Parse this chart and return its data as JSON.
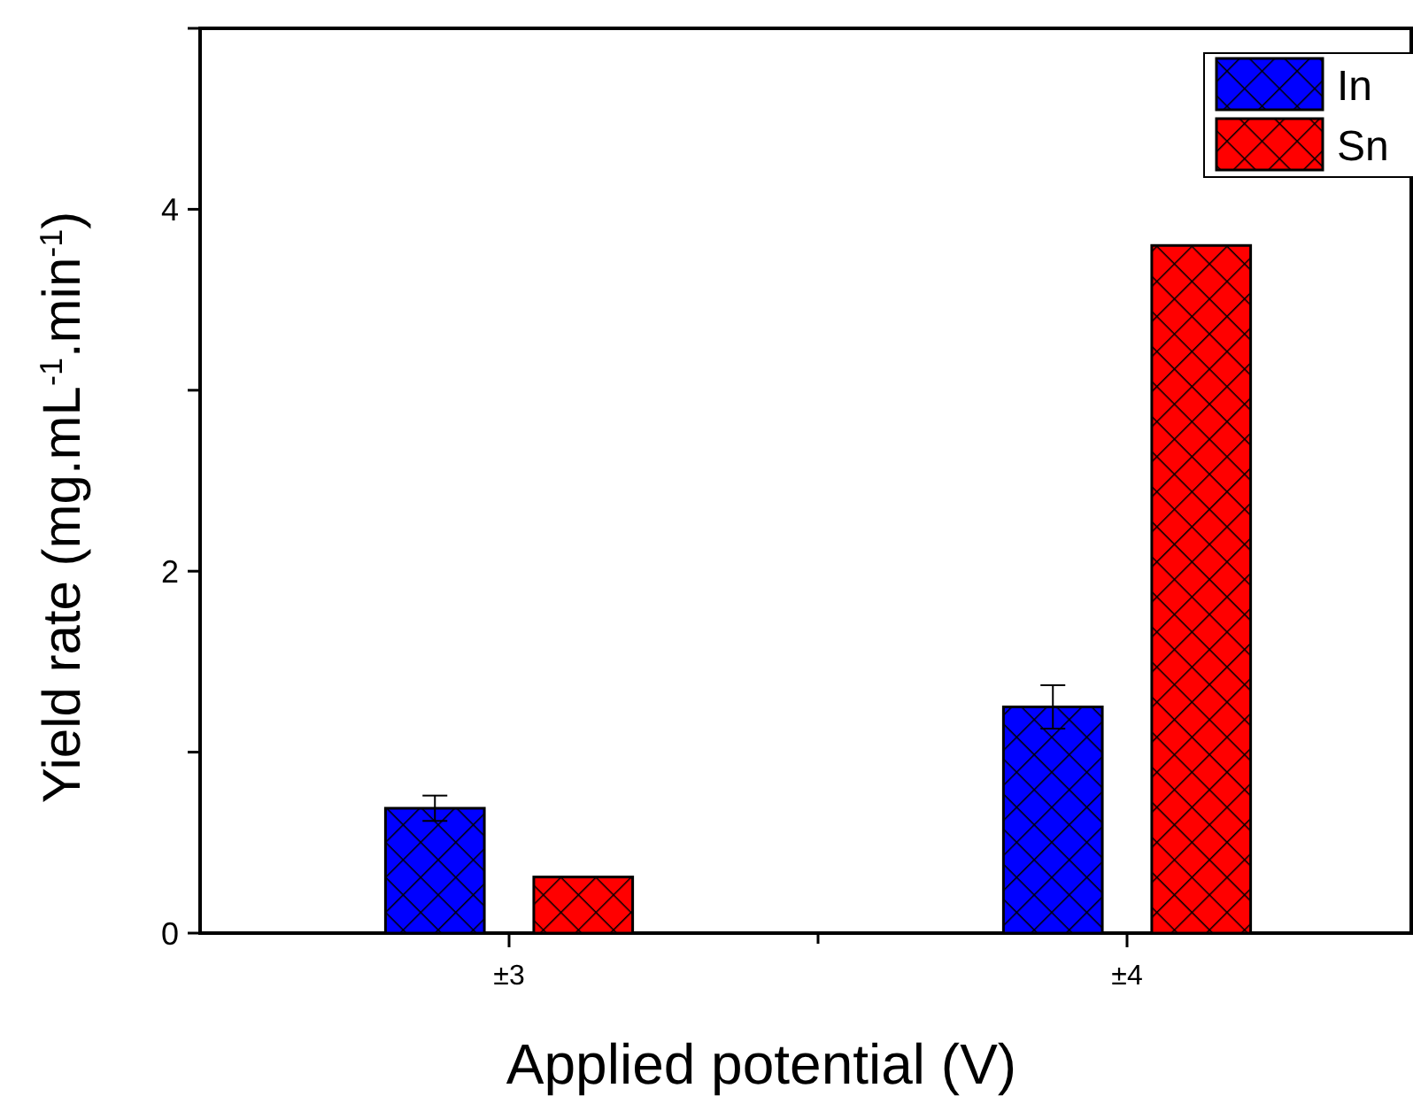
{
  "chart_data": {
    "type": "bar",
    "xlabel": "Applied potential (V)",
    "ylabel": "Yield rate (mg.mL$^{-1}$.min$^{-1}$)",
    "categories": [
      "±3",
      "±4"
    ],
    "series": [
      {
        "name": "In",
        "color": "#0000ff",
        "values": [
          0.69,
          1.25
        ],
        "errors": [
          0.07,
          0.12
        ]
      },
      {
        "name": "Sn",
        "color": "#ff0000",
        "values": [
          0.31,
          3.8
        ],
        "errors": [
          null,
          null
        ]
      }
    ],
    "ylim": [
      0,
      5
    ],
    "yticks": [
      0,
      {
        "value": 1,
        "label": null
      },
      2,
      {
        "value": 3,
        "label": null
      },
      4,
      {
        "value": 5,
        "label": null
      }
    ],
    "legend": "top right",
    "grid": false
  }
}
